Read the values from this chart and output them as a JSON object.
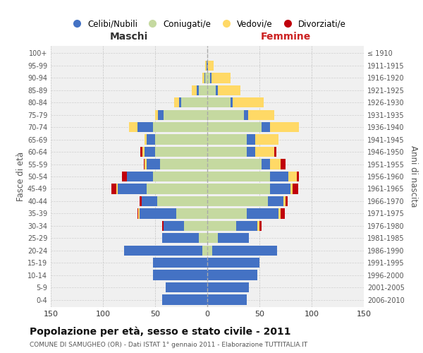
{
  "age_groups": [
    "0-4",
    "5-9",
    "10-14",
    "15-19",
    "20-24",
    "25-29",
    "30-34",
    "35-39",
    "40-44",
    "45-49",
    "50-54",
    "55-59",
    "60-64",
    "65-69",
    "70-74",
    "75-79",
    "80-84",
    "85-89",
    "90-94",
    "95-99",
    "100+"
  ],
  "birth_years": [
    "2006-2010",
    "2001-2005",
    "1996-2000",
    "1991-1995",
    "1986-1990",
    "1981-1985",
    "1976-1980",
    "1971-1975",
    "1966-1970",
    "1961-1965",
    "1956-1960",
    "1951-1955",
    "1946-1950",
    "1941-1945",
    "1936-1940",
    "1931-1935",
    "1926-1930",
    "1921-1925",
    "1916-1920",
    "1911-1915",
    "≤ 1910"
  ],
  "male": {
    "celibi": [
      43,
      40,
      52,
      52,
      75,
      35,
      20,
      35,
      15,
      28,
      25,
      13,
      10,
      8,
      15,
      5,
      2,
      2,
      1,
      1,
      0
    ],
    "coniugati": [
      0,
      0,
      0,
      0,
      5,
      8,
      22,
      30,
      48,
      58,
      52,
      45,
      50,
      50,
      52,
      42,
      25,
      8,
      2,
      0,
      0
    ],
    "vedovi": [
      0,
      0,
      0,
      0,
      0,
      0,
      0,
      1,
      0,
      1,
      0,
      2,
      2,
      2,
      8,
      3,
      5,
      5,
      2,
      1,
      0
    ],
    "divorziati": [
      0,
      0,
      0,
      0,
      0,
      0,
      1,
      1,
      2,
      5,
      5,
      1,
      2,
      0,
      0,
      0,
      0,
      0,
      0,
      0,
      0
    ]
  },
  "female": {
    "nubili": [
      38,
      40,
      48,
      50,
      62,
      30,
      20,
      30,
      15,
      20,
      18,
      8,
      8,
      8,
      8,
      4,
      2,
      2,
      1,
      1,
      0
    ],
    "coniugate": [
      0,
      0,
      0,
      0,
      5,
      10,
      28,
      38,
      58,
      60,
      60,
      52,
      38,
      38,
      52,
      35,
      22,
      8,
      3,
      0,
      0
    ],
    "vedove": [
      0,
      0,
      0,
      0,
      0,
      0,
      2,
      2,
      2,
      2,
      8,
      10,
      18,
      22,
      28,
      25,
      30,
      22,
      18,
      5,
      0
    ],
    "divorziate": [
      0,
      0,
      0,
      0,
      0,
      0,
      2,
      4,
      2,
      5,
      2,
      5,
      2,
      0,
      0,
      0,
      0,
      0,
      0,
      0,
      0
    ]
  },
  "colors": {
    "celibi_nubili": "#4472C4",
    "coniugati_e": "#C5D9A0",
    "vedovi_e": "#FFD966",
    "divorziati_e": "#C0000C"
  },
  "title": "Popolazione per età, sesso e stato civile - 2011",
  "subtitle": "COMUNE DI SAMUGHEO (OR) - Dati ISTAT 1° gennaio 2011 - Elaborazione TUTTITALIA.IT",
  "xlabel_left": "Maschi",
  "xlabel_right": "Femmine",
  "ylabel_left": "Fasce di età",
  "ylabel_right": "Anni di nascita",
  "xlim": 150,
  "background_color": "#ffffff",
  "plot_bg": "#f0f0f0",
  "grid_color": "#cccccc"
}
